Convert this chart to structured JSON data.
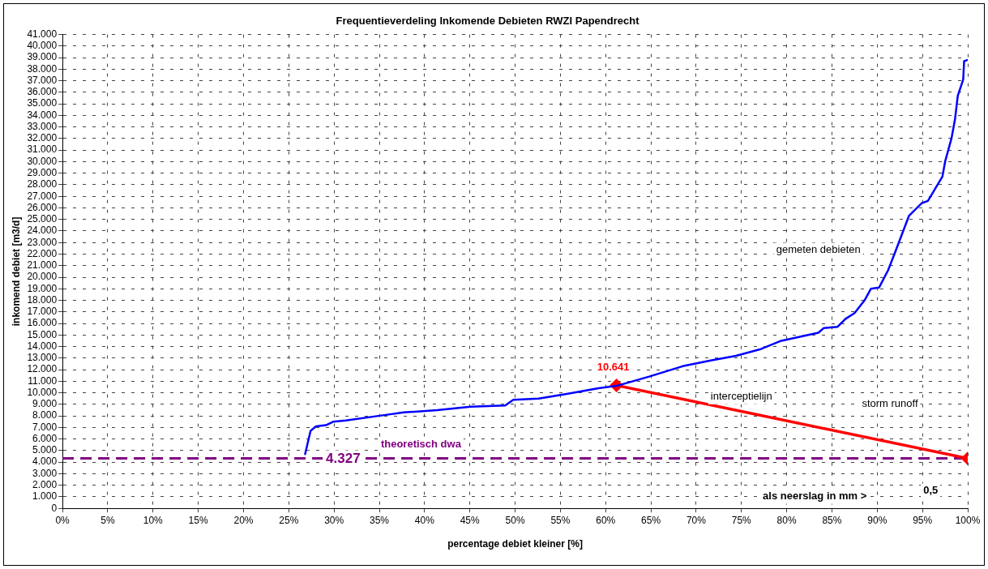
{
  "chart_data": {
    "type": "line",
    "title": "Frequentieverdeling Inkomende Debieten RWZI Papendrecht",
    "xlabel": "percentage debiet kleiner [%]",
    "ylabel": "inkomend debiet [m3/d]",
    "xlim": [
      0,
      100
    ],
    "xticks": [
      {
        "value": 0,
        "label": "0%"
      },
      {
        "value": 5,
        "label": "5%"
      },
      {
        "value": 10,
        "label": "10%"
      },
      {
        "value": 15,
        "label": "15%"
      },
      {
        "value": 20,
        "label": "20%"
      },
      {
        "value": 25,
        "label": "25%"
      },
      {
        "value": 30,
        "label": "30%"
      },
      {
        "value": 35,
        "label": "35%"
      },
      {
        "value": 40,
        "label": "40%"
      },
      {
        "value": 45,
        "label": "45%"
      },
      {
        "value": 50,
        "label": "50%"
      },
      {
        "value": 55,
        "label": "55%"
      },
      {
        "value": 60,
        "label": "60%"
      },
      {
        "value": 65,
        "label": "65%"
      },
      {
        "value": 70,
        "label": "70%"
      },
      {
        "value": 75,
        "label": "75%"
      },
      {
        "value": 80,
        "label": "80%"
      },
      {
        "value": 85,
        "label": "85%"
      },
      {
        "value": 90,
        "label": "90%"
      },
      {
        "value": 95,
        "label": "95%"
      },
      {
        "value": 100,
        "label": "100%"
      }
    ],
    "ylim": [
      0,
      41000
    ],
    "yticks": [
      {
        "value": 0,
        "label": "0"
      },
      {
        "value": 1000,
        "label": "1.000"
      },
      {
        "value": 2000,
        "label": "2.000"
      },
      {
        "value": 3000,
        "label": "3.000"
      },
      {
        "value": 4000,
        "label": "4.000"
      },
      {
        "value": 5000,
        "label": "5.000"
      },
      {
        "value": 6000,
        "label": "6.000"
      },
      {
        "value": 7000,
        "label": "7.000"
      },
      {
        "value": 8000,
        "label": "8.000"
      },
      {
        "value": 9000,
        "label": "9.000"
      },
      {
        "value": 10000,
        "label": "10.000"
      },
      {
        "value": 11000,
        "label": "11.000"
      },
      {
        "value": 12000,
        "label": "12.000"
      },
      {
        "value": 13000,
        "label": "13.000"
      },
      {
        "value": 14000,
        "label": "14.000"
      },
      {
        "value": 15000,
        "label": "15.000"
      },
      {
        "value": 16000,
        "label": "16.000"
      },
      {
        "value": 17000,
        "label": "17.000"
      },
      {
        "value": 18000,
        "label": "18.000"
      },
      {
        "value": 19000,
        "label": "19.000"
      },
      {
        "value": 20000,
        "label": "20.000"
      },
      {
        "value": 21000,
        "label": "21.000"
      },
      {
        "value": 22000,
        "label": "22.000"
      },
      {
        "value": 23000,
        "label": "23.000"
      },
      {
        "value": 24000,
        "label": "24.000"
      },
      {
        "value": 25000,
        "label": "25.000"
      },
      {
        "value": 26000,
        "label": "26.000"
      },
      {
        "value": 27000,
        "label": "27.000"
      },
      {
        "value": 28000,
        "label": "28.000"
      },
      {
        "value": 29000,
        "label": "29.000"
      },
      {
        "value": 30000,
        "label": "30.000"
      },
      {
        "value": 31000,
        "label": "31.000"
      },
      {
        "value": 32000,
        "label": "32.000"
      },
      {
        "value": 33000,
        "label": "33.000"
      },
      {
        "value": 34000,
        "label": "34.000"
      },
      {
        "value": 35000,
        "label": "35.000"
      },
      {
        "value": 36000,
        "label": "36.000"
      },
      {
        "value": 37000,
        "label": "37.000"
      },
      {
        "value": 38000,
        "label": "38.000"
      },
      {
        "value": 39000,
        "label": "39.000"
      },
      {
        "value": 40000,
        "label": "40.000"
      },
      {
        "value": 41000,
        "label": "41.000"
      }
    ],
    "grid": true,
    "legend": false,
    "marker": "none",
    "line_style": "solid",
    "series": [
      {
        "color": "#0000ff",
        "x": [
          26.8,
          27.4,
          28.0,
          29.1,
          29.9,
          31.3,
          34.9,
          37.7,
          41.4,
          45.1,
          48.9,
          49.8,
          52.6,
          55.7,
          59.2,
          61.2,
          64.8,
          68.5,
          71.6,
          74.4,
          77.2,
          79.4,
          83.5,
          84.1,
          85.6,
          86.5,
          87.5,
          88.6,
          89.3,
          90.2,
          91.2,
          91.9,
          93.5,
          94.9,
          95.6,
          97.2,
          97.5,
          98.2,
          98.6,
          98.9,
          99.5,
          99.6,
          100
        ],
        "values": [
          4700,
          6700,
          7100,
          7200,
          7500,
          7600,
          8000,
          8300,
          8500,
          8800,
          8900,
          9400,
          9500,
          9900,
          10400,
          10600,
          11400,
          12300,
          12800,
          13200,
          13800,
          14500,
          15200,
          15600,
          15700,
          16400,
          16900,
          18000,
          19000,
          19100,
          20600,
          22000,
          25300,
          26400,
          26600,
          28700,
          30000,
          32000,
          33700,
          35700,
          37100,
          38700,
          38800
        ]
      },
      {
        "color": "#ff0000",
        "marker": "diamond",
        "x": [
          61.2,
          100
        ],
        "values": [
          10641,
          4327
        ],
        "value_labels": [
          "10.641",
          null
        ]
      }
    ],
    "ref_lines": [
      {
        "axis": "y",
        "value": 4327,
        "label": "4.327",
        "color": "#800080",
        "line_style": "dashed"
      }
    ],
    "annotations": [
      "gemeten debieten",
      "interceptielijn",
      "storm runoff",
      "theoretisch dwa",
      "als neerslag in mm >",
      "0,5"
    ]
  }
}
